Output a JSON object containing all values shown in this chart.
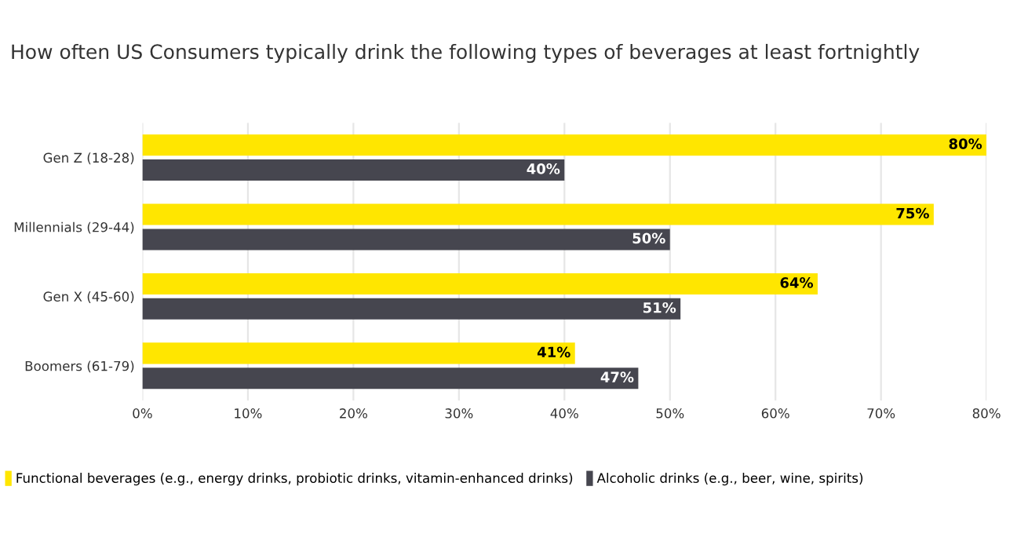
{
  "chart_data": {
    "type": "bar",
    "orientation": "horizontal",
    "title": "How often US Consumers typically drink the following types of beverages at least fortnightly",
    "categories": [
      "Gen Z (18-28)",
      "Millennials (29-44)",
      "Gen X (45-60)",
      "Boomers (61-79)"
    ],
    "series": [
      {
        "name": "Functional beverages (e.g., energy drinks, probiotic drinks, vitamin-enhanced drinks)",
        "color": "#ffe600",
        "values": [
          80,
          75,
          64,
          41
        ],
        "value_labels": [
          "80%",
          "75%",
          "64%",
          "41%"
        ]
      },
      {
        "name": "Alcoholic drinks (e.g., beer, wine, spirits)",
        "color": "#46464f",
        "values": [
          40,
          50,
          51,
          47
        ],
        "value_labels": [
          "40%",
          "50%",
          "51%",
          "47%"
        ]
      }
    ],
    "xlim": [
      0,
      80
    ],
    "xticks": [
      {
        "value": 0,
        "label": "0%"
      },
      {
        "value": 10,
        "label": "10%"
      },
      {
        "value": 20,
        "label": "20%"
      },
      {
        "value": 30,
        "label": "30%"
      },
      {
        "value": 40,
        "label": "40%"
      },
      {
        "value": 50,
        "label": "50%"
      },
      {
        "value": 60,
        "label": "60%"
      },
      {
        "value": 70,
        "label": "70%"
      },
      {
        "value": 80,
        "label": "80%"
      }
    ],
    "grid": "x",
    "legend": "bottom left"
  }
}
